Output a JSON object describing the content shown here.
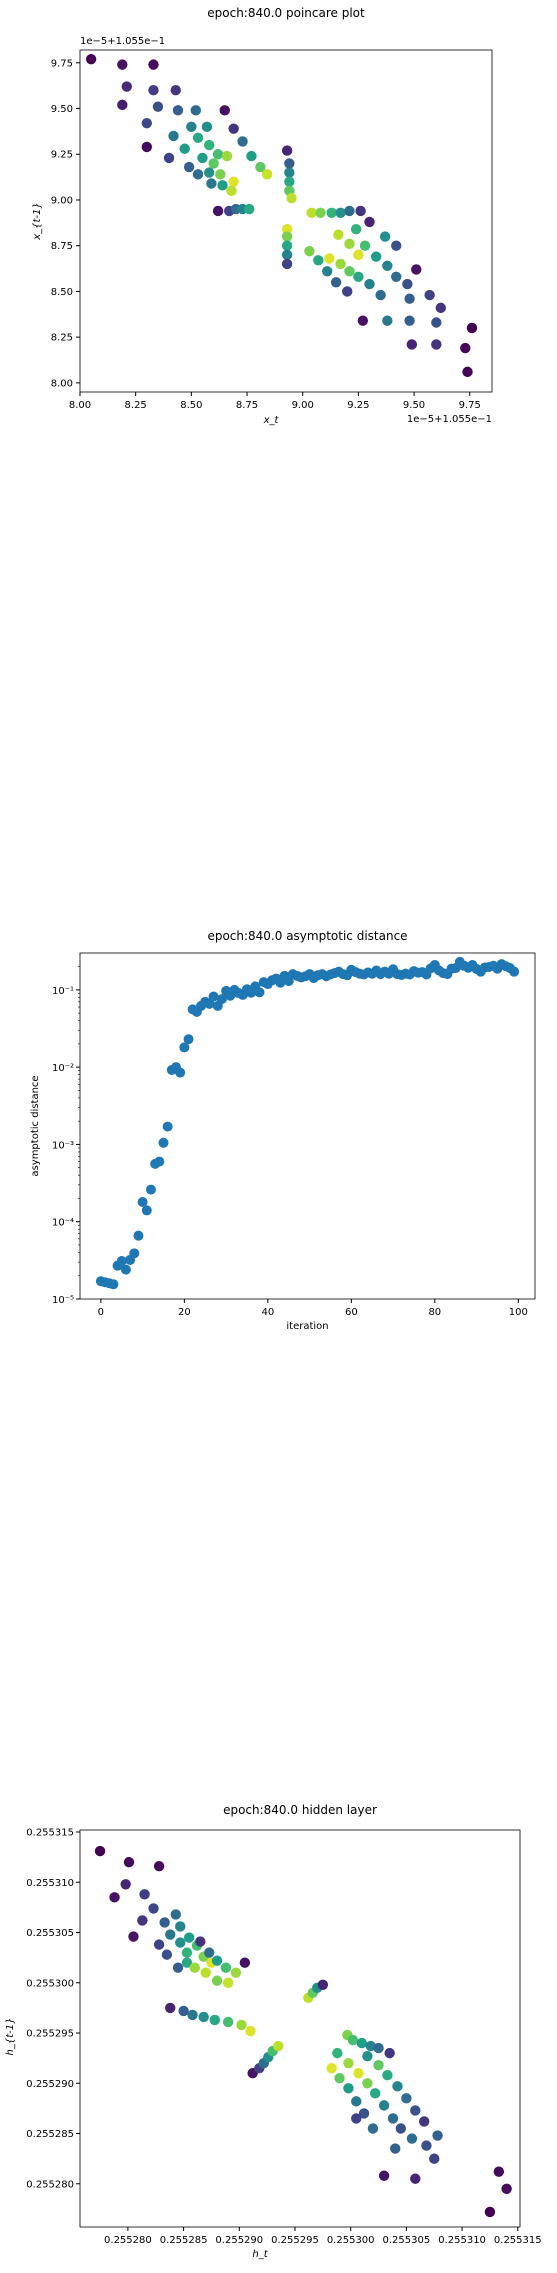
{
  "chart_data": [
    {
      "type": "scatter",
      "title": "epoch:840.0 poincare plot",
      "xlabel": "x_t",
      "ylabel": "x_{t-1}",
      "x_offset_label": "1e−5+1.055e−1",
      "y_offset_label": "1e−5+1.055e−1",
      "xlim": [
        8.0,
        9.85
      ],
      "ylim": [
        7.95,
        9.82
      ],
      "xticks": [
        "8.00",
        "8.25",
        "8.50",
        "8.75",
        "9.00",
        "9.25",
        "9.50",
        "9.75"
      ],
      "yticks": [
        "8.00",
        "8.25",
        "8.50",
        "8.75",
        "9.00",
        "9.25",
        "9.50",
        "9.75"
      ],
      "colormap": "viridis",
      "points": [
        [
          8.05,
          9.77,
          0
        ],
        [
          8.19,
          9.74,
          0.05
        ],
        [
          8.33,
          9.74,
          0.02
        ],
        [
          8.19,
          9.52,
          0.08
        ],
        [
          8.3,
          9.29,
          0.02
        ],
        [
          8.21,
          9.62,
          0.12
        ],
        [
          8.33,
          9.6,
          0.18
        ],
        [
          8.43,
          9.6,
          0.15
        ],
        [
          8.3,
          9.42,
          0.22
        ],
        [
          8.35,
          9.51,
          0.25
        ],
        [
          8.44,
          9.49,
          0.3
        ],
        [
          8.52,
          9.49,
          0.35
        ],
        [
          8.42,
          9.35,
          0.4
        ],
        [
          8.5,
          9.4,
          0.45
        ],
        [
          8.57,
          9.4,
          0.5
        ],
        [
          8.4,
          9.23,
          0.2
        ],
        [
          8.47,
          9.28,
          0.55
        ],
        [
          8.53,
          9.34,
          0.6
        ],
        [
          8.58,
          9.3,
          0.65
        ],
        [
          8.62,
          9.25,
          0.7
        ],
        [
          8.49,
          9.18,
          0.3
        ],
        [
          8.55,
          9.23,
          0.55
        ],
        [
          8.6,
          9.2,
          0.75
        ],
        [
          8.66,
          9.24,
          0.85
        ],
        [
          8.53,
          9.14,
          0.35
        ],
        [
          8.58,
          9.15,
          0.5
        ],
        [
          8.63,
          9.14,
          0.8
        ],
        [
          8.69,
          9.1,
          0.95
        ],
        [
          8.59,
          9.09,
          0.4
        ],
        [
          8.64,
          9.08,
          0.55
        ],
        [
          8.68,
          9.05,
          0.9
        ],
        [
          8.65,
          9.49,
          0.05
        ],
        [
          8.69,
          9.39,
          0.15
        ],
        [
          8.73,
          9.32,
          0.35
        ],
        [
          8.77,
          9.24,
          0.55
        ],
        [
          8.81,
          9.18,
          0.75
        ],
        [
          8.84,
          9.14,
          0.92
        ],
        [
          8.93,
          9.27,
          0.1
        ],
        [
          8.94,
          9.2,
          0.3
        ],
        [
          8.94,
          9.15,
          0.45
        ],
        [
          8.94,
          9.1,
          0.6
        ],
        [
          8.94,
          9.05,
          0.75
        ],
        [
          8.95,
          9.01,
          0.9
        ],
        [
          8.62,
          8.94,
          0.05
        ],
        [
          8.67,
          8.94,
          0.2
        ],
        [
          8.7,
          8.95,
          0.35
        ],
        [
          8.73,
          8.95,
          0.45
        ],
        [
          8.76,
          8.95,
          0.6
        ],
        [
          8.93,
          8.84,
          0.95
        ],
        [
          8.93,
          8.8,
          0.8
        ],
        [
          8.93,
          8.75,
          0.6
        ],
        [
          8.93,
          8.7,
          0.45
        ],
        [
          8.93,
          8.65,
          0.2
        ],
        [
          9.04,
          8.93,
          0.9
        ],
        [
          9.08,
          8.93,
          0.8
        ],
        [
          9.13,
          8.93,
          0.65
        ],
        [
          9.17,
          8.93,
          0.5
        ],
        [
          9.21,
          8.94,
          0.35
        ],
        [
          9.26,
          8.94,
          0.15
        ],
        [
          9.03,
          8.72,
          0.8
        ],
        [
          9.07,
          8.67,
          0.6
        ],
        [
          9.11,
          8.61,
          0.45
        ],
        [
          9.15,
          8.55,
          0.3
        ],
        [
          9.2,
          8.5,
          0.2
        ],
        [
          9.12,
          8.68,
          0.95
        ],
        [
          9.17,
          8.65,
          0.85
        ],
        [
          9.21,
          8.61,
          0.75
        ],
        [
          9.25,
          8.58,
          0.6
        ],
        [
          9.3,
          8.54,
          0.45
        ],
        [
          9.35,
          8.48,
          0.35
        ],
        [
          9.16,
          8.81,
          0.9
        ],
        [
          9.21,
          8.76,
          0.85
        ],
        [
          9.25,
          8.7,
          0.95
        ],
        [
          9.28,
          8.75,
          0.7
        ],
        [
          9.33,
          8.69,
          0.55
        ],
        [
          9.38,
          8.64,
          0.45
        ],
        [
          9.42,
          8.58,
          0.35
        ],
        [
          9.47,
          8.54,
          0.25
        ],
        [
          9.51,
          8.62,
          0.05
        ],
        [
          9.48,
          8.46,
          0.3
        ],
        [
          9.57,
          8.48,
          0.2
        ],
        [
          9.62,
          8.41,
          0.15
        ],
        [
          9.6,
          8.33,
          0.25
        ],
        [
          9.48,
          8.34,
          0.3
        ],
        [
          9.38,
          8.34,
          0.4
        ],
        [
          9.27,
          8.34,
          0.05
        ],
        [
          9.49,
          8.21,
          0.1
        ],
        [
          9.6,
          8.21,
          0.15
        ],
        [
          9.73,
          8.19,
          0.02
        ],
        [
          9.76,
          8.3,
          0.0
        ],
        [
          9.74,
          8.06,
          0.0
        ],
        [
          9.42,
          8.75,
          0.25
        ],
        [
          9.37,
          8.8,
          0.5
        ],
        [
          9.3,
          8.88,
          0.1
        ],
        [
          9.24,
          8.84,
          0.65
        ]
      ]
    },
    {
      "type": "scatter",
      "title": "epoch:840.0 asymptotic distance",
      "xlabel": "iteration",
      "ylabel": "asymptotic distance",
      "yscale": "log",
      "xlim": [
        -5,
        104
      ],
      "ylim": [
        1e-05,
        0.3
      ],
      "xticks": [
        "0",
        "20",
        "40",
        "60",
        "80",
        "100"
      ],
      "yticks": [
        "10⁻⁵",
        "10⁻⁴",
        "10⁻³",
        "10⁻²",
        "10⁻¹"
      ],
      "color": "#1f77b4",
      "y": [
        1.7e-05,
        1.65e-05,
        1.6e-05,
        1.55e-05,
        2.7e-05,
        3.1e-05,
        2.4e-05,
        3.2e-05,
        3.9e-05,
        6.6e-05,
        0.00018,
        0.00014,
        0.00026,
        0.00056,
        0.0006,
        0.00105,
        0.0017,
        0.0092,
        0.01,
        0.0085,
        0.018,
        0.023,
        0.056,
        0.052,
        0.062,
        0.07,
        0.066,
        0.082,
        0.062,
        0.076,
        0.097,
        0.084,
        0.1,
        0.091,
        0.086,
        0.102,
        0.092,
        0.111,
        0.093,
        0.126,
        0.119,
        0.133,
        0.14,
        0.124,
        0.152,
        0.13,
        0.16,
        0.152,
        0.145,
        0.15,
        0.16,
        0.142,
        0.155,
        0.16,
        0.15,
        0.158,
        0.165,
        0.172,
        0.16,
        0.155,
        0.182,
        0.17,
        0.162,
        0.158,
        0.168,
        0.162,
        0.178,
        0.16,
        0.172,
        0.162,
        0.185,
        0.16,
        0.156,
        0.162,
        0.158,
        0.175,
        0.167,
        0.17,
        0.158,
        0.19,
        0.21,
        0.178,
        0.165,
        0.16,
        0.188,
        0.192,
        0.23,
        0.205,
        0.193,
        0.21,
        0.186,
        0.172,
        0.195,
        0.198,
        0.205,
        0.188,
        0.215,
        0.202,
        0.192,
        0.172
      ]
    },
    {
      "type": "scatter",
      "title": "epoch:840.0 hidden layer",
      "xlabel": "h_t",
      "ylabel": "h_{t-1}",
      "xlim": [
        0.2552757,
        0.2553152
      ],
      "ylim": [
        0.2552757,
        0.2553152
      ],
      "xticks": [
        "0.255280",
        "0.255285",
        "0.255290",
        "0.255295",
        "0.255300",
        "0.255305",
        "0.255310",
        "0.255315"
      ],
      "yticks": [
        "0.255280",
        "0.255285",
        "0.255290",
        "0.255295",
        "0.255300",
        "0.255305",
        "0.255310",
        "0.255315"
      ],
      "colormap": "viridis",
      "points": [
        [
          0.2552775,
          0.2553131,
          0
        ],
        [
          0.2552788,
          0.2553085,
          0.05
        ],
        [
          0.2552801,
          0.255312,
          0.02
        ],
        [
          0.2552798,
          0.2553098,
          0.1
        ],
        [
          0.2552815,
          0.2553088,
          0.18
        ],
        [
          0.2552828,
          0.2553116,
          0.02
        ],
        [
          0.2552805,
          0.2553046,
          0.05
        ],
        [
          0.2552813,
          0.2553062,
          0.15
        ],
        [
          0.2552823,
          0.2553074,
          0.22
        ],
        [
          0.2552833,
          0.255306,
          0.3
        ],
        [
          0.2552843,
          0.2553068,
          0.35
        ],
        [
          0.2552828,
          0.2553038,
          0.2
        ],
        [
          0.2552838,
          0.2553048,
          0.4
        ],
        [
          0.2552847,
          0.2553056,
          0.45
        ],
        [
          0.2552855,
          0.2553045,
          0.55
        ],
        [
          0.2552835,
          0.2553028,
          0.25
        ],
        [
          0.2552847,
          0.255304,
          0.5
        ],
        [
          0.2552853,
          0.255303,
          0.65
        ],
        [
          0.2552862,
          0.2553037,
          0.7
        ],
        [
          0.2552868,
          0.2553026,
          0.8
        ],
        [
          0.2552845,
          0.2553015,
          0.3
        ],
        [
          0.2552853,
          0.255302,
          0.6
        ],
        [
          0.255286,
          0.2553015,
          0.85
        ],
        [
          0.255287,
          0.255301,
          0.9
        ],
        [
          0.2552875,
          0.255302,
          0.95
        ],
        [
          0.2552865,
          0.2553041,
          0.15
        ],
        [
          0.2552873,
          0.255303,
          0.35
        ],
        [
          0.255288,
          0.2553022,
          0.55
        ],
        [
          0.2552888,
          0.2553015,
          0.7
        ],
        [
          0.2552897,
          0.255301,
          0.85
        ],
        [
          0.2552905,
          0.255302,
          0.05
        ],
        [
          0.255289,
          0.2553,
          0.92
        ],
        [
          0.255288,
          0.2553002,
          0.8
        ],
        [
          0.2552838,
          0.2552975,
          0.1
        ],
        [
          0.255285,
          0.2552972,
          0.3
        ],
        [
          0.2552858,
          0.2552968,
          0.4
        ],
        [
          0.2552868,
          0.2552966,
          0.5
        ],
        [
          0.2552878,
          0.2552963,
          0.6
        ],
        [
          0.255289,
          0.2552961,
          0.7
        ],
        [
          0.2552902,
          0.2552958,
          0.85
        ],
        [
          0.255291,
          0.2552952,
          0.95
        ],
        [
          0.2552912,
          0.255291,
          0.05
        ],
        [
          0.2552918,
          0.2552915,
          0.2
        ],
        [
          0.2552922,
          0.255292,
          0.35
        ],
        [
          0.2552926,
          0.2552926,
          0.5
        ],
        [
          0.255293,
          0.2552932,
          0.7
        ],
        [
          0.2552935,
          0.2552937,
          0.9
        ],
        [
          0.2552962,
          0.2552985,
          0.9
        ],
        [
          0.2552966,
          0.255299,
          0.75
        ],
        [
          0.255297,
          0.2552995,
          0.5
        ],
        [
          0.2552975,
          0.2552998,
          0.1
        ],
        [
          0.2552997,
          0.2552948,
          0.8
        ],
        [
          0.2553002,
          0.2552943,
          0.7
        ],
        [
          0.255301,
          0.255294,
          0.55
        ],
        [
          0.2553018,
          0.2552937,
          0.45
        ],
        [
          0.2553025,
          0.2552935,
          0.35
        ],
        [
          0.2553035,
          0.255293,
          0.15
        ],
        [
          0.2552983,
          0.2552915,
          0.95
        ],
        [
          0.255299,
          0.2552905,
          0.75
        ],
        [
          0.2552998,
          0.2552895,
          0.55
        ],
        [
          0.2553005,
          0.2552882,
          0.4
        ],
        [
          0.2553012,
          0.255287,
          0.25
        ],
        [
          0.2552988,
          0.255293,
          0.65
        ],
        [
          0.2552998,
          0.255292,
          0.85
        ],
        [
          0.2553007,
          0.255291,
          0.95
        ],
        [
          0.2553015,
          0.25529,
          0.8
        ],
        [
          0.2553022,
          0.255289,
          0.6
        ],
        [
          0.255303,
          0.2552878,
          0.45
        ],
        [
          0.2553038,
          0.2552865,
          0.35
        ],
        [
          0.2553045,
          0.2552855,
          0.25
        ],
        [
          0.2553015,
          0.2552927,
          0.5
        ],
        [
          0.2553025,
          0.2552918,
          0.75
        ],
        [
          0.2553033,
          0.2552908,
          0.6
        ],
        [
          0.2553042,
          0.2552897,
          0.45
        ],
        [
          0.255305,
          0.2552885,
          0.35
        ],
        [
          0.2553058,
          0.2552873,
          0.25
        ],
        [
          0.2553066,
          0.2552862,
          0.15
        ],
        [
          0.255304,
          0.2552835,
          0.3
        ],
        [
          0.2553055,
          0.2552845,
          0.35
        ],
        [
          0.255303,
          0.2552808,
          0.05
        ],
        [
          0.2553058,
          0.2552805,
          0.1
        ],
        [
          0.2553075,
          0.2552825,
          0.2
        ],
        [
          0.2553125,
          0.2552772,
          0.0
        ],
        [
          0.2553133,
          0.2552812,
          0.02
        ],
        [
          0.255314,
          0.2552795,
          0.03
        ],
        [
          0.2553068,
          0.2552838,
          0.25
        ],
        [
          0.2553078,
          0.2552848,
          0.3
        ],
        [
          0.2553005,
          0.2552865,
          0.2
        ],
        [
          0.255302,
          0.2552855,
          0.35
        ]
      ]
    }
  ]
}
